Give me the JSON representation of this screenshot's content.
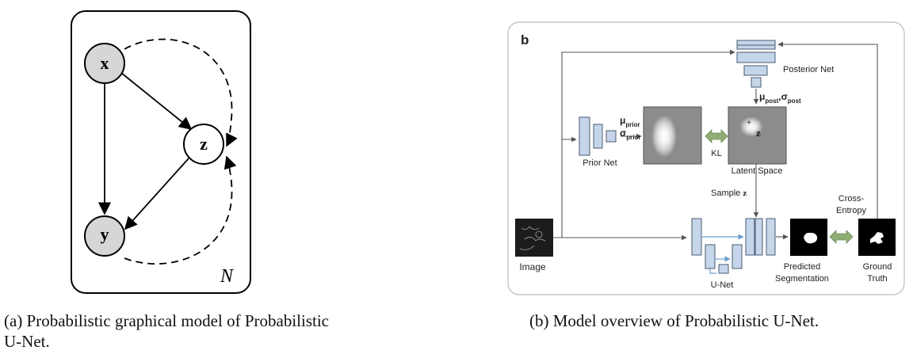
{
  "panel_a": {
    "nodes": {
      "x": "x",
      "z": "z",
      "y": "y"
    },
    "plate_label": "N",
    "caption": "(a) Probabilistic graphical model of Probabilistic U-Net."
  },
  "panel_b": {
    "panel_letter": "b",
    "labels": {
      "posterior_net": "Posterior Net",
      "prior_net": "Prior Net",
      "kl": "KL",
      "latent_space": "Latent Space",
      "latent_z": "z",
      "sample_z": "Sample",
      "sample_z_var": "z",
      "cross_entropy_1": "Cross-",
      "cross_entropy_2": "Entropy",
      "image": "Image",
      "unet": "U-Net",
      "predicted_1": "Predicted",
      "predicted_2": "Segmentation",
      "ground_truth_1": "Ground",
      "ground_truth_2": "Truth",
      "mu": "μ",
      "sigma": "σ",
      "prior_sub": "prior",
      "post_sub": "post"
    },
    "caption": "(b) Model overview of Probabilistic U-Net."
  },
  "colors": {
    "block_fill": "#c5d6ea",
    "block_stroke": "#4a5a70",
    "observed_node": "#d6d6d6",
    "kl_arrow": "#8fae75",
    "skip_arrow": "#6d9ed0"
  }
}
